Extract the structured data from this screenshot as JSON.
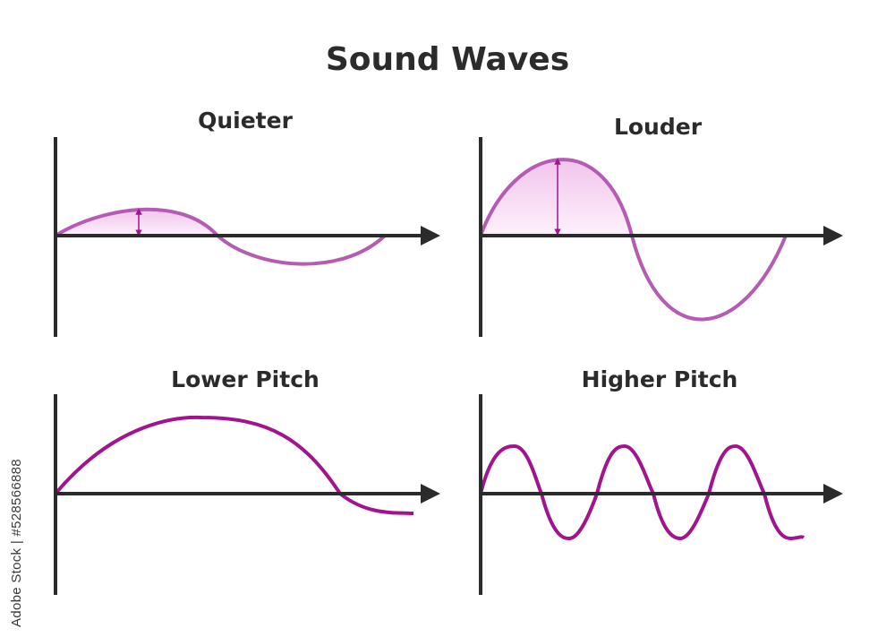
{
  "title": "Sound Waves",
  "credit": "Adobe Stock | #528566888",
  "colors": {
    "axis": "#2b2b2b",
    "wave_light": "#b65bb4",
    "wave_dark": "#a1148e",
    "fill_pink": "#f7d6f1"
  },
  "panels": [
    {
      "id": "quieter",
      "title": "Quieter",
      "amplitude": "low",
      "cycles": 1,
      "amplitude_marker": true
    },
    {
      "id": "louder",
      "title": "Louder",
      "amplitude": "high",
      "cycles": 1,
      "amplitude_marker": true
    },
    {
      "id": "lower-pitch",
      "title": "Lower Pitch",
      "frequency": "low",
      "cycles": 0.6,
      "amplitude_marker": false
    },
    {
      "id": "higher-pitch",
      "title": "Higher Pitch",
      "frequency": "high",
      "cycles": 3,
      "amplitude_marker": false
    }
  ]
}
